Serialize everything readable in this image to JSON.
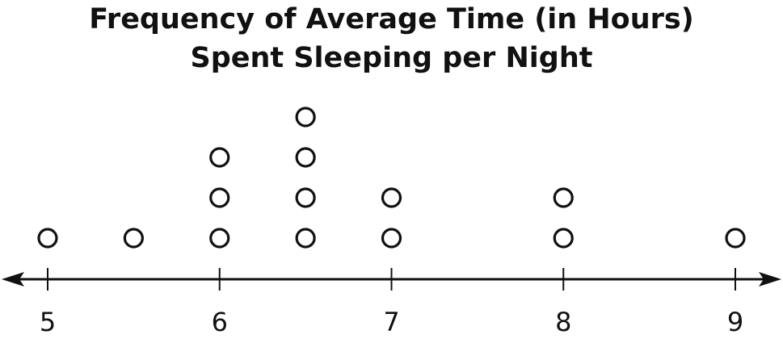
{
  "chart_data": {
    "type": "dot_plot",
    "title_lines": [
      "Frequency of Average Time (in Hours)",
      "Spent Sleeping per Night"
    ],
    "xlabel": "",
    "ylabel": "",
    "xlim": [
      5,
      9
    ],
    "ticks": [
      "5",
      "6",
      "7",
      "8",
      "9"
    ],
    "points": [
      {
        "x": 5,
        "count": 1
      },
      {
        "x": 5.5,
        "count": 1
      },
      {
        "x": 6,
        "count": 3
      },
      {
        "x": 6.5,
        "count": 4
      },
      {
        "x": 7,
        "count": 2
      },
      {
        "x": 8,
        "count": 2
      },
      {
        "x": 9,
        "count": 1
      }
    ],
    "marker": "open-circle",
    "axis_arrows": true,
    "grid": false
  }
}
